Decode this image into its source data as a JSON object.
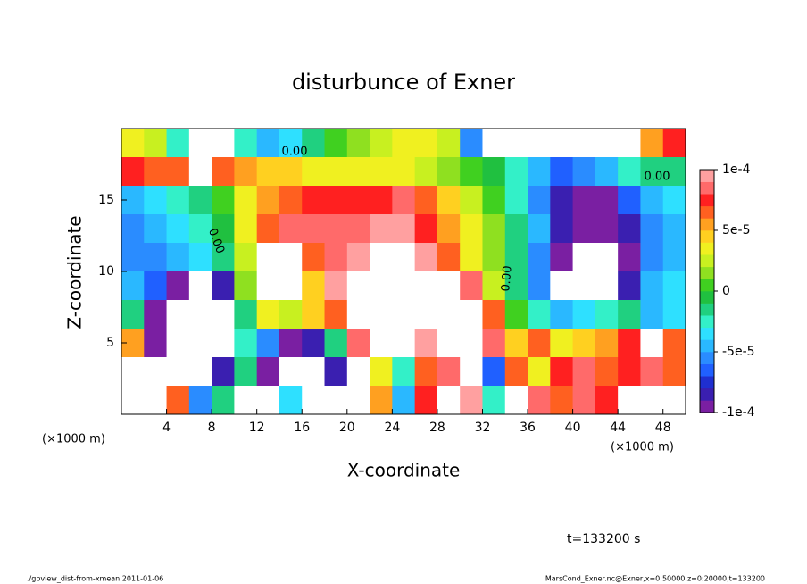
{
  "chart_data": {
    "type": "contour",
    "title": "disturbunce of Exner",
    "x_label": "X-coordinate",
    "y_label": "Z-coordinate",
    "x_unit_label": "(×1000 m)",
    "y_unit_label": "(×1000 m)",
    "annotations": [
      "0.00",
      "0.00",
      "0.00",
      "0.00"
    ],
    "time_label": "t=133200 s",
    "footer_left": "./gpview_dist-from-xmean  2011-01-06",
    "footer_right": "MarsCond_Exner.nc@Exner,x=0:50000,z=0:20000,t=133200",
    "xlim": [
      0,
      50
    ],
    "ylim": [
      0,
      20
    ],
    "xticks": [
      4,
      8,
      12,
      16,
      20,
      24,
      28,
      32,
      36,
      40,
      44,
      48
    ],
    "yticks": [
      5,
      10,
      15
    ],
    "clim": [
      -0.0001,
      0.0001
    ],
    "cticks": [
      {
        "value": 0.0001,
        "label": "1e-4"
      },
      {
        "value": 5e-05,
        "label": "5e-5"
      },
      0,
      {
        "value": -5e-05,
        "label": "-5e-5"
      },
      {
        "value": -0.0001,
        "label": "-1e-4"
      }
    ],
    "colors": [
      "#7a1fa2",
      "#3a1fb0",
      "#1f2fd0",
      "#2060ff",
      "#2a8cff",
      "#2ab8ff",
      "#2ee0ff",
      "#33f0c8",
      "#20d080",
      "#20c040",
      "#40d020",
      "#8fe020",
      "#c8f020",
      "#f0f020",
      "#ffd020",
      "#ffa020",
      "#ff6020",
      "#ff2020",
      "#ff6a6a",
      "#ffa0a0"
    ],
    "out_of_range_color": "#ffffff",
    "x": [
      1,
      3,
      5,
      7,
      9,
      11,
      13,
      15,
      17,
      19,
      21,
      23,
      25,
      27,
      29,
      31,
      33,
      35,
      37,
      39,
      41,
      43,
      45,
      47,
      49
    ],
    "y": [
      19,
      17,
      15,
      13,
      11,
      9,
      7,
      5,
      3,
      1
    ],
    "values": [
      [
        3e-05,
        2e-05,
        -3e-05,
        0.00015,
        0.00015,
        -3e-05,
        -5e-05,
        -4e-05,
        -2e-05,
        0,
        1e-05,
        2e-05,
        3e-05,
        3e-05,
        2e-05,
        -6e-05,
        0.00015,
        0.00015,
        0.00015,
        0.00015,
        0.00015,
        0.00015,
        0.00015,
        5e-05,
        7e-05
      ],
      [
        7e-05,
        6e-05,
        6e-05,
        0.00015,
        6e-05,
        5e-05,
        4e-05,
        4e-05,
        3e-05,
        3e-05,
        3e-05,
        3e-05,
        3e-05,
        2e-05,
        1e-05,
        0,
        -1e-05,
        -3e-05,
        -5e-05,
        -7e-05,
        -6e-05,
        -5e-05,
        -3e-05,
        -2e-05,
        -2e-05
      ],
      [
        -5e-05,
        -4e-05,
        -3e-05,
        -2e-05,
        0,
        3e-05,
        5e-05,
        6e-05,
        7e-05,
        7e-05,
        7e-05,
        7e-05,
        8e-05,
        6e-05,
        4e-05,
        2e-05,
        0,
        -3e-05,
        -6e-05,
        -8e-05,
        -9e-05,
        -9e-05,
        -7e-05,
        -5e-05,
        -4e-05
      ],
      [
        -6e-05,
        -5e-05,
        -4e-05,
        -3e-05,
        -1e-05,
        3e-05,
        6e-05,
        8e-05,
        8e-05,
        8e-05,
        8e-05,
        9e-05,
        9e-05,
        7e-05,
        5e-05,
        3e-05,
        1e-05,
        -2e-05,
        -5e-05,
        -8e-05,
        -0.0001,
        -0.0001,
        -8e-05,
        -6e-05,
        -5e-05
      ],
      [
        -6e-05,
        -6e-05,
        -5e-05,
        -4e-05,
        -2e-05,
        2e-05,
        0.00015,
        0.00015,
        6e-05,
        8e-05,
        9e-05,
        0.00015,
        0.00015,
        9e-05,
        6e-05,
        3e-05,
        1e-05,
        -2e-05,
        -6e-05,
        -9e-05,
        -0.00015,
        -0.00015,
        -9e-05,
        -6e-05,
        -5e-05
      ],
      [
        -5e-05,
        -7e-05,
        -9e-05,
        -0.00015,
        -8e-05,
        1e-05,
        0.00015,
        0.00015,
        4e-05,
        9e-05,
        0.00015,
        0.00015,
        0.00015,
        0.00015,
        0.00015,
        8e-05,
        2e-05,
        -2e-05,
        -6e-05,
        -0.00015,
        -0.00015,
        -0.00015,
        -8e-05,
        -5e-05,
        -4e-05
      ],
      [
        -2e-05,
        -9e-05,
        -0.00015,
        -0.00015,
        -0.00015,
        -2e-05,
        3e-05,
        2e-05,
        4e-05,
        6e-05,
        0.00015,
        0.00015,
        0.00015,
        0.00015,
        0.00015,
        0.00015,
        6e-05,
        0,
        -3e-05,
        -5e-05,
        -4e-05,
        -3e-05,
        -2e-05,
        -5e-05,
        -4e-05
      ],
      [
        5e-05,
        -9e-05,
        -0.00015,
        -0.00015,
        -0.00015,
        -3e-05,
        -6e-05,
        -0.0001,
        -8e-05,
        -2e-05,
        8e-05,
        0.00015,
        0.00015,
        9e-05,
        0.00015,
        0.00015,
        8e-05,
        4e-05,
        6e-05,
        3e-05,
        4e-05,
        5e-05,
        7e-05,
        -0.00015,
        6e-05
      ],
      [
        0.00015,
        0.00015,
        -0.00015,
        -0.00015,
        -8e-05,
        -2e-05,
        -0.0001,
        -0.00015,
        -0.00015,
        -8e-05,
        -0.00012,
        3e-05,
        -3e-05,
        6e-05,
        8e-05,
        0.00015,
        -7e-05,
        6e-05,
        3e-05,
        7e-05,
        8e-05,
        6e-05,
        7e-05,
        8e-05,
        6e-05
      ],
      [
        0.00015,
        0.00015,
        6e-05,
        -6e-05,
        -2e-05,
        0.00015,
        0.00015,
        -4e-05,
        0.00015,
        -0.00015,
        -0.00015,
        5e-05,
        -5e-05,
        7e-05,
        0.00015,
        9e-05,
        -3e-05,
        0.00015,
        8e-05,
        6e-05,
        8e-05,
        7e-05,
        0.00015,
        0.00015,
        0.00015
      ]
    ]
  }
}
